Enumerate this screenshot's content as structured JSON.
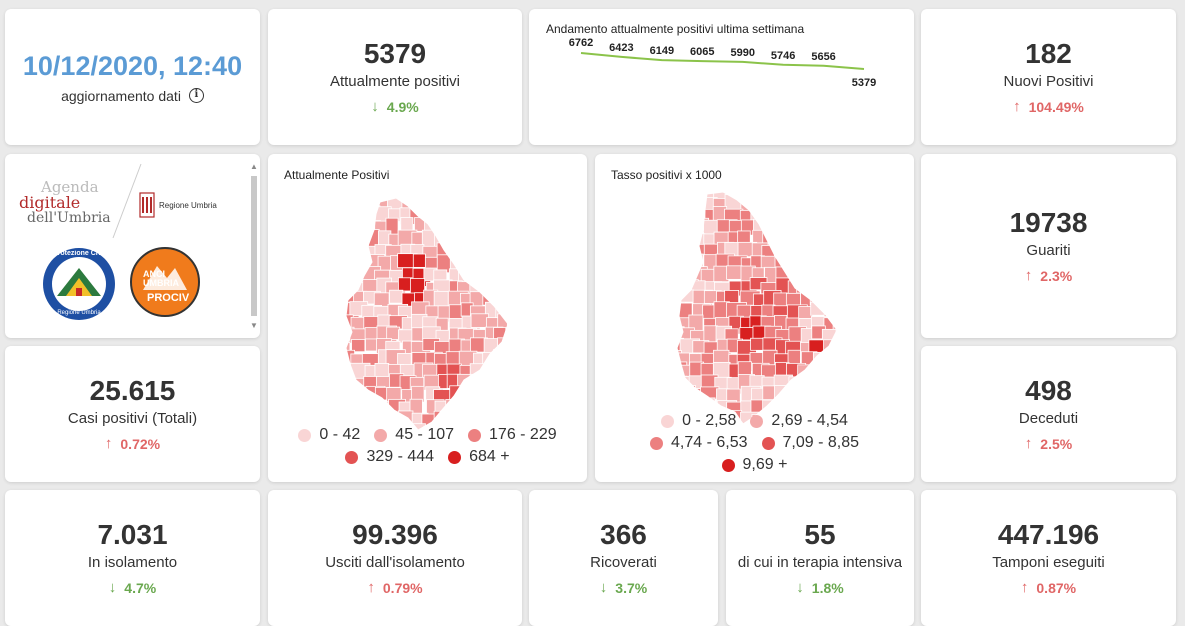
{
  "update": {
    "datetime": "10/12/2020, 12:40",
    "label": "aggiornamento dati",
    "info_icon": "info-circle-icon"
  },
  "attualmente_positivi": {
    "value": "5379",
    "label": "Attualmente positivi",
    "change": "4.9%",
    "direction": "down"
  },
  "trend": {
    "title": "Andamento attualmente positivi ultima settimana",
    "values": [
      6762,
      6423,
      6149,
      6065,
      5990,
      5746,
      5656,
      5379
    ],
    "labels": [
      "6762",
      "6423",
      "6149",
      "6065",
      "5990",
      "5746",
      "5656",
      "5379"
    ],
    "color": "#8bc34a"
  },
  "nuovi_positivi": {
    "value": "182",
    "label": "Nuovi Positivi",
    "change": "104.49%",
    "direction": "up"
  },
  "logos": {
    "agenda_line1": "Agenda",
    "agenda_line2": "digitale",
    "agenda_line3": "dell'Umbria",
    "regione": "Regione Umbria",
    "protezione_ring": "Protezione Civile",
    "protezione_bottom": "Regione Umbria",
    "anci_line1": "ANCI",
    "anci_line2": "UMBRIA",
    "anci_line3": "PROCIV"
  },
  "map_positivi": {
    "title": "Attualmente Positivi",
    "legend": [
      {
        "label": "0 - 42",
        "color": "#f9d5d5"
      },
      {
        "label": "45 - 107",
        "color": "#f3a9a9"
      },
      {
        "label": "176 - 229",
        "color": "#ec8080"
      },
      {
        "label": "329 - 444",
        "color": "#e35353"
      },
      {
        "label": "684 +",
        "color": "#d81f1f"
      }
    ]
  },
  "map_tasso": {
    "title": "Tasso positivi x 1000",
    "legend": [
      {
        "label": "0 - 2,58",
        "color": "#f9d5d5"
      },
      {
        "label": "2,69 - 4,54",
        "color": "#f3a9a9"
      },
      {
        "label": "4,74 - 6,53",
        "color": "#ec8080"
      },
      {
        "label": "7,09 - 8,85",
        "color": "#e35353"
      },
      {
        "label": "9,69 +",
        "color": "#d81f1f"
      }
    ]
  },
  "guariti": {
    "value": "19738",
    "label": "Guariti",
    "change": "2.3%",
    "direction": "up"
  },
  "casi_totali": {
    "value": "25.615",
    "label": "Casi positivi (Totali)",
    "change": "0.72%",
    "direction": "up"
  },
  "deceduti": {
    "value": "498",
    "label": "Deceduti",
    "change": "2.5%",
    "direction": "up"
  },
  "isolamento": {
    "value": "7.031",
    "label": "In isolamento",
    "change": "4.7%",
    "direction": "down"
  },
  "usciti": {
    "value": "99.396",
    "label": "Usciti dall'isolamento",
    "change": "0.79%",
    "direction": "up"
  },
  "ricoverati": {
    "value": "366",
    "label": "Ricoverati",
    "change": "3.7%",
    "direction": "down"
  },
  "terapia": {
    "value": "55",
    "label": "di cui in terapia intensiva",
    "change": "1.8%",
    "direction": "down"
  },
  "tamponi": {
    "value": "447.196",
    "label": "Tamponi eseguiti",
    "change": "0.87%",
    "direction": "up"
  }
}
